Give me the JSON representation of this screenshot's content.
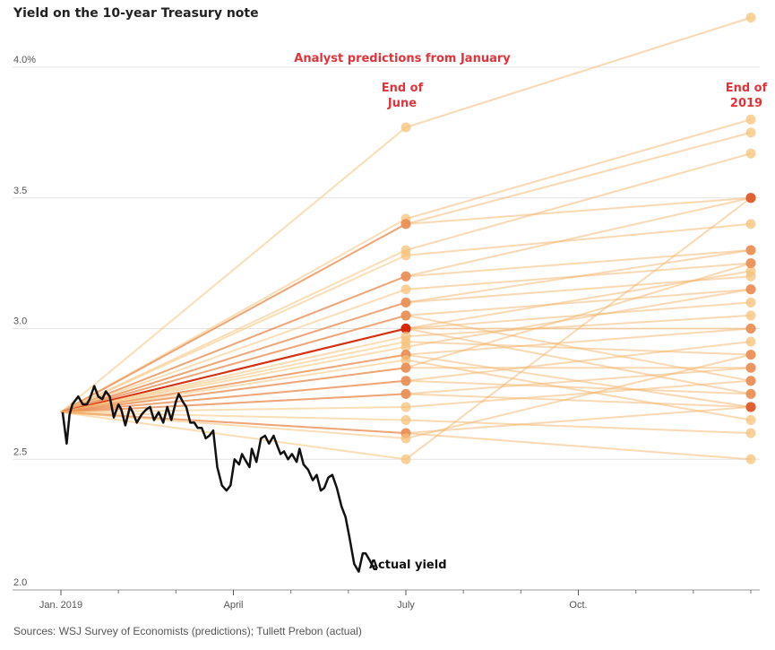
{
  "chart_data": {
    "type": "line",
    "title": "Yield on the 10-year Treasury note",
    "source": "Sources: WSJ Survey of Economists (predictions); Tullett Prebon (actual)",
    "ylim": [
      2.0,
      4.2
    ],
    "yticks": [
      {
        "value": 4.0,
        "label": "4.0%"
      },
      {
        "value": 3.5,
        "label": "3.5"
      },
      {
        "value": 3.0,
        "label": "3.0"
      },
      {
        "value": 2.5,
        "label": "2.5"
      },
      {
        "value": 2.0,
        "label": "2.0"
      }
    ],
    "xlim_months": [
      0,
      12
    ],
    "xticks": [
      {
        "month": 0,
        "label": "Jan. 2019"
      },
      {
        "month": 3,
        "label": "April"
      },
      {
        "month": 6,
        "label": "July"
      },
      {
        "month": 9,
        "label": "Oct."
      }
    ],
    "minor_xticks_months": [
      1,
      2,
      4,
      5,
      7,
      8,
      10,
      11,
      12
    ],
    "grid": true,
    "annotations": {
      "predictions_header": "Analyst predictions from January",
      "june_label_line1": "End of",
      "june_label_line2": "June",
      "dec_label_line1": "End of",
      "dec_label_line2": "2019",
      "actual_label": "Actual yield"
    },
    "colors": {
      "actual": "#111111",
      "annotation": "#e0333a",
      "prediction_light": "#f5c27a",
      "prediction_dark": "#d42a0a"
    },
    "prediction_start": {
      "month": 0.0,
      "value": 2.68
    },
    "predictions": [
      {
        "june": 3.77,
        "dec": 4.19
      },
      {
        "june": 3.42,
        "dec": 3.8
      },
      {
        "june": 3.4,
        "dec": 3.75
      },
      {
        "june": 3.4,
        "dec": 3.5
      },
      {
        "june": 3.3,
        "dec": 3.67
      },
      {
        "june": 3.28,
        "dec": 3.4
      },
      {
        "june": 3.2,
        "dec": 3.5
      },
      {
        "june": 3.2,
        "dec": 3.3
      },
      {
        "june": 3.15,
        "dec": 3.25
      },
      {
        "june": 3.1,
        "dec": 3.3
      },
      {
        "june": 3.1,
        "dec": 3.2
      },
      {
        "june": 3.05,
        "dec": 3.15
      },
      {
        "june": 3.05,
        "dec": 2.8
      },
      {
        "june": 3.0,
        "dec": 3.0
      },
      {
        "june": 3.0,
        "dec": 3.22
      },
      {
        "june": 3.0,
        "dec": 3.1
      },
      {
        "june": 3.0,
        "dec": 2.75
      },
      {
        "june": 2.97,
        "dec": 3.05
      },
      {
        "june": 2.95,
        "dec": 2.9
      },
      {
        "june": 2.93,
        "dec": 3.15
      },
      {
        "june": 2.9,
        "dec": 3.0
      },
      {
        "june": 2.9,
        "dec": 2.7
      },
      {
        "june": 2.88,
        "dec": 2.65
      },
      {
        "june": 2.85,
        "dec": 3.25
      },
      {
        "june": 2.85,
        "dec": 2.85
      },
      {
        "june": 2.8,
        "dec": 2.95
      },
      {
        "june": 2.8,
        "dec": 2.75
      },
      {
        "june": 2.75,
        "dec": 2.85
      },
      {
        "june": 2.75,
        "dec": 2.7
      },
      {
        "june": 2.7,
        "dec": 2.8
      },
      {
        "june": 2.65,
        "dec": 2.6
      },
      {
        "june": 2.6,
        "dec": 2.5
      },
      {
        "june": 2.6,
        "dec": 2.7
      },
      {
        "june": 2.58,
        "dec": 2.9
      },
      {
        "june": 2.5,
        "dec": 3.5
      }
    ],
    "actual_series": {
      "name": "Actual yield",
      "months": [
        0.03,
        0.1,
        0.15,
        0.2,
        0.3,
        0.38,
        0.45,
        0.5,
        0.58,
        0.65,
        0.72,
        0.78,
        0.85,
        0.92,
        1.0,
        1.05,
        1.12,
        1.2,
        1.25,
        1.32,
        1.4,
        1.48,
        1.55,
        1.62,
        1.7,
        1.78,
        1.85,
        1.92,
        2.0,
        2.05,
        2.12,
        2.18,
        2.25,
        2.32,
        2.38,
        2.45,
        2.52,
        2.58,
        2.65,
        2.72,
        2.8,
        2.88,
        2.95,
        3.02,
        3.1,
        3.15,
        3.2,
        3.28,
        3.32,
        3.4,
        3.48,
        3.55,
        3.62,
        3.7,
        3.75,
        3.82,
        3.88,
        3.95,
        4.02,
        4.1,
        4.15,
        4.22,
        4.3,
        4.38,
        4.45,
        4.52,
        4.58,
        4.65,
        4.72,
        4.8,
        4.88,
        4.95,
        5.02,
        5.1,
        5.18,
        5.25,
        5.3,
        5.38,
        5.45,
        5.5
      ],
      "values": [
        2.68,
        2.56,
        2.67,
        2.71,
        2.74,
        2.71,
        2.71,
        2.73,
        2.78,
        2.74,
        2.73,
        2.76,
        2.74,
        2.66,
        2.71,
        2.69,
        2.63,
        2.7,
        2.68,
        2.64,
        2.67,
        2.69,
        2.7,
        2.65,
        2.68,
        2.64,
        2.7,
        2.65,
        2.72,
        2.75,
        2.72,
        2.7,
        2.64,
        2.64,
        2.62,
        2.62,
        2.58,
        2.59,
        2.61,
        2.47,
        2.4,
        2.38,
        2.4,
        2.5,
        2.48,
        2.52,
        2.5,
        2.47,
        2.54,
        2.49,
        2.58,
        2.59,
        2.56,
        2.59,
        2.56,
        2.52,
        2.53,
        2.5,
        2.52,
        2.49,
        2.54,
        2.48,
        2.46,
        2.42,
        2.44,
        2.38,
        2.39,
        2.43,
        2.44,
        2.39,
        2.32,
        2.28,
        2.2,
        2.1,
        2.07,
        2.14,
        2.14,
        2.11,
        2.08,
        2.08
      ]
    }
  }
}
